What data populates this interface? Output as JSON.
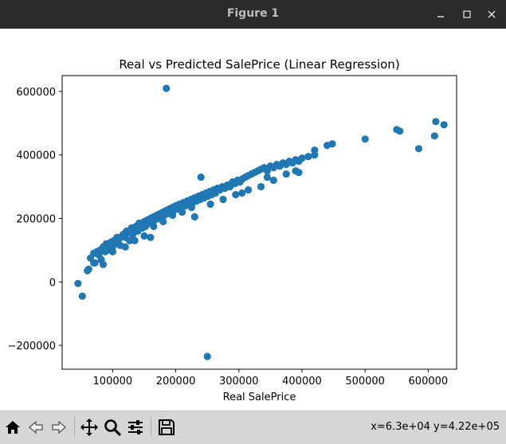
{
  "window": {
    "title": "Figure 1",
    "minimize_icon": "minimize-icon",
    "maximize_icon": "maximize-icon",
    "close_icon": "close-icon"
  },
  "toolbar": {
    "buttons": [
      {
        "name": "home-button",
        "icon": "home-icon"
      },
      {
        "name": "back-button",
        "icon": "arrow-left-icon"
      },
      {
        "name": "forward-button",
        "icon": "arrow-right-icon"
      },
      {
        "name": "pan-button",
        "icon": "move-icon"
      },
      {
        "name": "zoom-button",
        "icon": "magnifier-icon"
      },
      {
        "name": "configure-subplots-button",
        "icon": "sliders-icon"
      },
      {
        "name": "save-button",
        "icon": "save-icon"
      }
    ],
    "coords": "x=6.3e+04 y=4.22e+05"
  },
  "chart_data": {
    "type": "scatter",
    "title": "Real vs Predicted SalePrice (Linear Regression)",
    "xlabel": "Real SalePrice",
    "ylabel": "",
    "xlim": [
      20000,
      645000
    ],
    "ylim": [
      -275000,
      650000
    ],
    "xticks": [
      100000,
      200000,
      300000,
      400000,
      500000,
      600000
    ],
    "xtick_labels": [
      "100000",
      "200000",
      "300000",
      "400000",
      "500000",
      "600000"
    ],
    "yticks": [
      -200000,
      0,
      200000,
      400000,
      600000
    ],
    "ytick_labels": [
      "−200000",
      "0",
      "200000",
      "400000",
      "600000"
    ],
    "grid": false,
    "marker_color": "#1f77b4",
    "series": [
      {
        "x": [
          45000,
          52000,
          62000,
          65000,
          70000,
          72000,
          75000,
          78000,
          80000,
          82000,
          85000,
          88000,
          90000,
          92000,
          95000,
          97000,
          100000,
          102000,
          105000,
          107000,
          110000,
          112000,
          115000,
          117000,
          120000,
          122000,
          125000,
          127000,
          130000,
          132000,
          135000,
          137000,
          140000,
          142000,
          145000,
          147000,
          150000,
          152000,
          155000,
          157000,
          160000,
          162000,
          165000,
          167000,
          170000,
          172000,
          175000,
          177000,
          180000,
          182000,
          185000,
          187000,
          190000,
          192000,
          195000,
          197000,
          200000,
          203000,
          206000,
          209000,
          212000,
          215000,
          218000,
          221000,
          224000,
          227000,
          230000,
          233000,
          236000,
          239000,
          242000,
          245000,
          248000,
          251000,
          254000,
          257000,
          260000,
          263000,
          266000,
          270000,
          274000,
          278000,
          282000,
          286000,
          290000,
          294000,
          298000,
          302000,
          306000,
          310000,
          315000,
          320000,
          325000,
          330000,
          335000,
          340000,
          345000,
          350000,
          355000,
          360000,
          365000,
          370000,
          375000,
          380000,
          385000,
          390000,
          395000,
          400000,
          410000,
          420000,
          440000,
          500000,
          550000,
          555000,
          585000,
          610000,
          625000,
          185000,
          250000,
          240000,
          100000,
          120000,
          135000,
          150000,
          165000,
          180000,
          195000,
          210000,
          225000,
          255000,
          275000,
          295000,
          315000,
          335000,
          355000,
          375000,
          395000,
          60000,
          70000,
          85000,
          160000,
          230000,
          305000,
          345000,
          390000,
          420000,
          448000,
          612000
        ],
        "y": [
          -5000,
          -45000,
          40000,
          75000,
          90000,
          60000,
          95000,
          85000,
          100000,
          70000,
          110000,
          95000,
          120000,
          100000,
          105000,
          125000,
          110000,
          130000,
          120000,
          140000,
          135000,
          115000,
          145000,
          150000,
          140000,
          160000,
          155000,
          130000,
          170000,
          150000,
          165000,
          175000,
          160000,
          185000,
          180000,
          170000,
          190000,
          175000,
          195000,
          185000,
          200000,
          190000,
          205000,
          195000,
          210000,
          200000,
          215000,
          205000,
          220000,
          210000,
          225000,
          215000,
          230000,
          220000,
          235000,
          225000,
          240000,
          230000,
          245000,
          235000,
          250000,
          240000,
          255000,
          245000,
          260000,
          250000,
          265000,
          255000,
          270000,
          260000,
          275000,
          265000,
          280000,
          270000,
          285000,
          275000,
          290000,
          280000,
          295000,
          290000,
          300000,
          295000,
          305000,
          300000,
          315000,
          310000,
          320000,
          315000,
          325000,
          330000,
          335000,
          340000,
          345000,
          350000,
          355000,
          360000,
          350000,
          365000,
          360000,
          370000,
          365000,
          375000,
          370000,
          380000,
          375000,
          385000,
          380000,
          390000,
          395000,
          400000,
          430000,
          450000,
          480000,
          475000,
          420000,
          460000,
          495000,
          610000,
          -235000,
          330000,
          95000,
          110000,
          130000,
          145000,
          175000,
          190000,
          210000,
          220000,
          235000,
          245000,
          260000,
          275000,
          290000,
          300000,
          320000,
          340000,
          345000,
          35000,
          60000,
          55000,
          140000,
          205000,
          280000,
          330000,
          350000,
          415000,
          435000,
          505000
        ]
      }
    ]
  }
}
